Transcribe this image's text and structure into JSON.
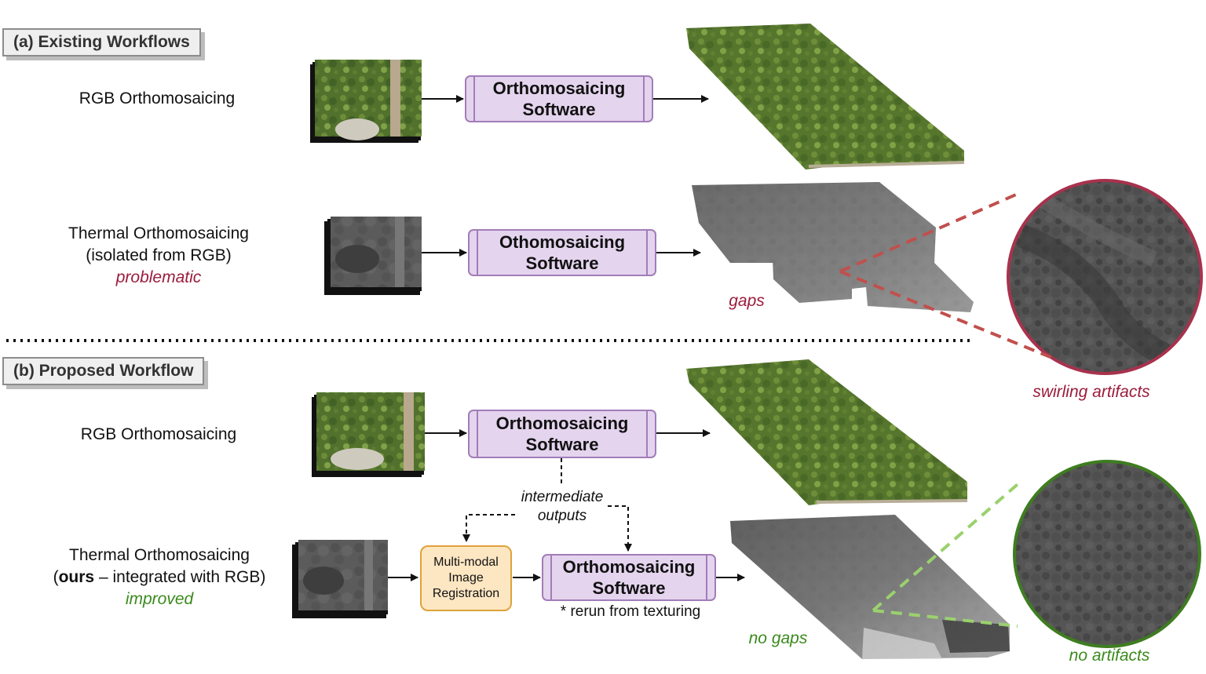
{
  "section_a": {
    "title": "(a) Existing Workflows",
    "row1": {
      "label": "RGB Orthomosaicing",
      "software": [
        "Orthomosaicing",
        "Software"
      ]
    },
    "row2": {
      "label_lines": [
        "Thermal Orthomosaicing",
        "(isolated from RGB)"
      ],
      "verdict": "problematic",
      "software": [
        "Othomosaicing",
        "Software"
      ],
      "gaps_note": "gaps",
      "artifact_note": "swirling artifacts"
    }
  },
  "section_b": {
    "title": "(b) Proposed Workflow",
    "row1": {
      "label": "RGB Orthomosaicing",
      "software": [
        "Orthomosaicing",
        "Software"
      ]
    },
    "intermediate": [
      "intermediate",
      "outputs"
    ],
    "row2": {
      "label_line1": "Thermal Orthomosaicing",
      "label_open": "(",
      "label_bold": "ours",
      "label_rest": " – integrated with RGB)",
      "verdict": "improved",
      "registration": [
        "Multi-modal",
        "Image",
        "Registration"
      ],
      "software": [
        "Orthomosaicing",
        "Software"
      ],
      "rerun_note": "* rerun from texturing",
      "gaps_note": "no gaps",
      "artifact_note": "no artifacts"
    }
  },
  "colors": {
    "bad": "#9b1c3c",
    "good": "#3b8a1d",
    "software_fill": "#e4d4ee",
    "software_border": "#a27db8",
    "registration_fill": "#fde6c2",
    "registration_border": "#e0a23a",
    "zoom_bad_stroke": "#a8324d",
    "zoom_good_stroke": "#3e7d20",
    "dash_bad": "#c0504d",
    "dash_good": "#9ad16e"
  },
  "icons": [
    "rgb-image-stack-icon",
    "thermal-image-stack-icon",
    "rgb-orthomosaic-image",
    "thermal-orthomosaic-image",
    "zoom-circle-icon"
  ]
}
